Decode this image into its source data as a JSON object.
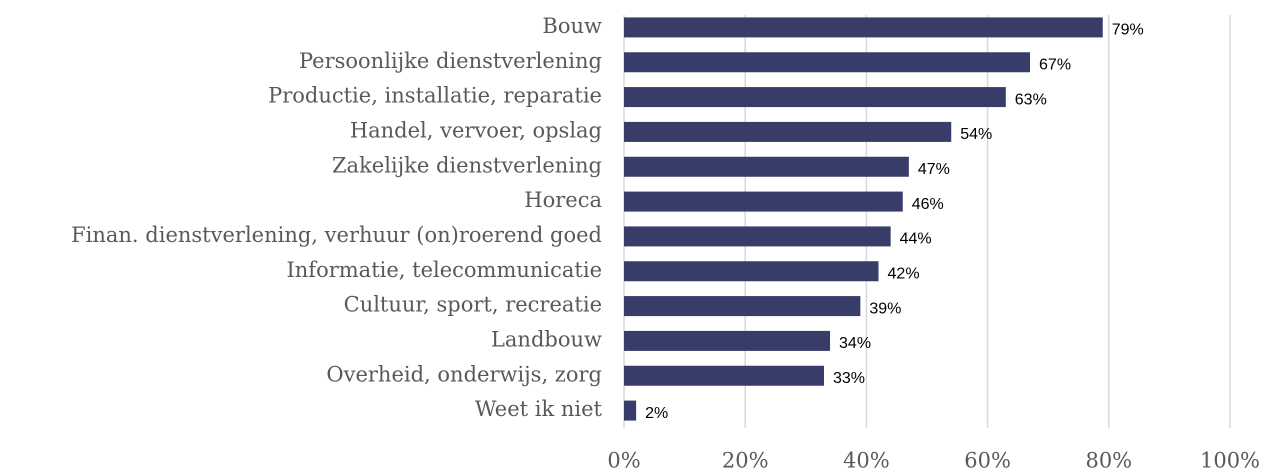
{
  "chart_data": {
    "type": "barh",
    "categories": [
      "Bouw",
      "Persoonlijke dienstverlening",
      "Productie, installatie, reparatie",
      "Handel, vervoer, opslag",
      "Zakelijke dienstverlening",
      "Horeca",
      "Finan. dienstverlening, verhuur (on)roerend goed",
      "Informatie, telecommunicatie",
      "Cultuur, sport, recreatie",
      "Landbouw",
      "Overheid, onderwijs, zorg",
      "Weet ik niet"
    ],
    "values": [
      79,
      67,
      63,
      54,
      47,
      46,
      44,
      42,
      39,
      34,
      33,
      2
    ],
    "value_labels": [
      "79%",
      "67%",
      "63%",
      "54%",
      "47%",
      "46%",
      "44%",
      "42%",
      "39%",
      "34%",
      "33%",
      "2%"
    ],
    "color": "#373c68",
    "xlim": [
      0,
      100
    ],
    "xticks": [
      {
        "value": 0,
        "label": "0%"
      },
      {
        "value": 20,
        "label": "20%"
      },
      {
        "value": 40,
        "label": "40%"
      },
      {
        "value": 60,
        "label": "60%"
      },
      {
        "value": 80,
        "label": "80%"
      },
      {
        "value": 100,
        "label": "100%"
      }
    ],
    "grid": true
  }
}
